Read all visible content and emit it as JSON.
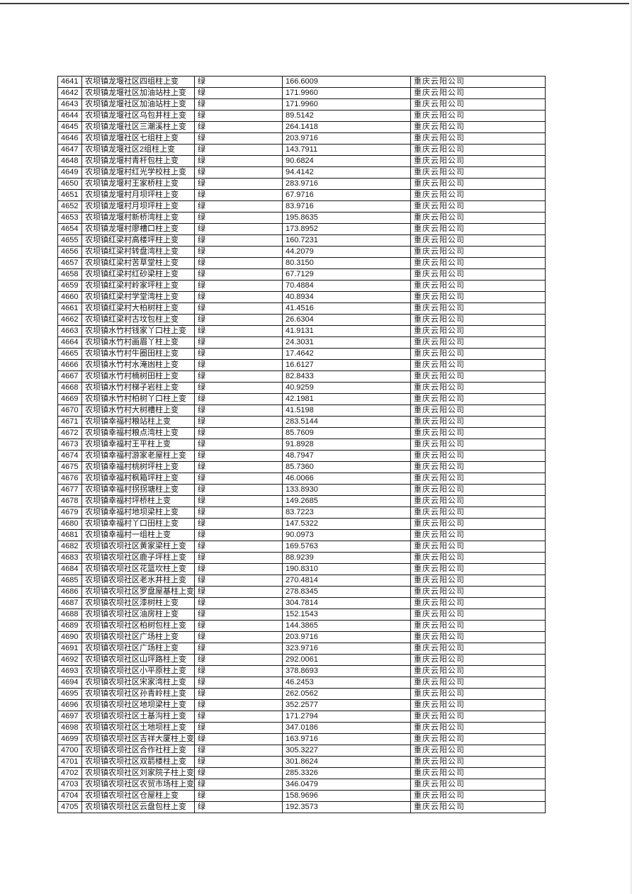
{
  "page": {
    "background": "#ffffff",
    "top_rule_color": "#3c3c3c",
    "grid_border_color": "#161616"
  },
  "table": {
    "color_label_all_rows": "绿",
    "company_all_rows": "重庆云阳公司",
    "rows": [
      {
        "id": "4641",
        "name": "农坝镇龙堰社区四组柱上变",
        "color": "绿",
        "value": "166.6009",
        "company": "重庆云阳公司"
      },
      {
        "id": "4642",
        "name": "农坝镇龙堰社区加油站柱上变",
        "color": "绿",
        "value": "171.9960",
        "company": "重庆云阳公司"
      },
      {
        "id": "4643",
        "name": "农坝镇龙堰社区加油站柱上变",
        "color": "绿",
        "value": "171.9960",
        "company": "重庆云阳公司"
      },
      {
        "id": "4644",
        "name": "农坝镇龙堰社区乌包井柱上变",
        "color": "绿",
        "value": "89.5142",
        "company": "重庆云阳公司"
      },
      {
        "id": "4645",
        "name": "农坝镇龙堰社区三潮溪柱上变",
        "color": "绿",
        "value": "264.1418",
        "company": "重庆云阳公司"
      },
      {
        "id": "4646",
        "name": "农坝镇龙堰社区七组柱上变",
        "color": "绿",
        "value": "203.9716",
        "company": "重庆云阳公司"
      },
      {
        "id": "4647",
        "name": "农坝镇龙堰社区2组柱上变",
        "color": "绿",
        "value": "143.7911",
        "company": "重庆云阳公司"
      },
      {
        "id": "4648",
        "name": "农坝镇龙堰村青杆包柱上变",
        "color": "绿",
        "value": "90.6824",
        "company": "重庆云阳公司"
      },
      {
        "id": "4649",
        "name": "农坝镇龙堰村红光学校柱上变",
        "color": "绿",
        "value": "94.4142",
        "company": "重庆云阳公司"
      },
      {
        "id": "4650",
        "name": "农坝镇龙堰村王家桥柱上变",
        "color": "绿",
        "value": "283.9716",
        "company": "重庆云阳公司"
      },
      {
        "id": "4651",
        "name": "农坝镇龙堰村月坝坪柱上变",
        "color": "绿",
        "value": "67.9716",
        "company": "重庆云阳公司"
      },
      {
        "id": "4652",
        "name": "农坝镇龙堰村月坝坪柱上变",
        "color": "绿",
        "value": "83.9716",
        "company": "重庆云阳公司"
      },
      {
        "id": "4653",
        "name": "农坝镇龙堰村新桥湾柱上变",
        "color": "绿",
        "value": "195.8635",
        "company": "重庆云阳公司"
      },
      {
        "id": "4654",
        "name": "农坝镇龙堰村廖槽口柱上变",
        "color": "绿",
        "value": "173.8952",
        "company": "重庆云阳公司"
      },
      {
        "id": "4655",
        "name": "农坝镇红梁村高楼坪柱上变",
        "color": "绿",
        "value": "160.7231",
        "company": "重庆云阳公司"
      },
      {
        "id": "4656",
        "name": "农坝镇红梁村转盘湾柱上变",
        "color": "绿",
        "value": "44.2079",
        "company": "重庆云阳公司"
      },
      {
        "id": "4657",
        "name": "农坝镇红梁村苦草堂柱上变",
        "color": "绿",
        "value": "80.3150",
        "company": "重庆云阳公司"
      },
      {
        "id": "4658",
        "name": "农坝镇红梁村红砂梁柱上变",
        "color": "绿",
        "value": "67.7129",
        "company": "重庆云阳公司"
      },
      {
        "id": "4659",
        "name": "农坝镇红梁村岭家坪柱上变",
        "color": "绿",
        "value": "70.4884",
        "company": "重庆云阳公司"
      },
      {
        "id": "4660",
        "name": "农坝镇红梁村学堂湾柱上变",
        "color": "绿",
        "value": "40.8934",
        "company": "重庆云阳公司"
      },
      {
        "id": "4661",
        "name": "农坝镇红梁村大柏树柱上变",
        "color": "绿",
        "value": "41.4516",
        "company": "重庆云阳公司"
      },
      {
        "id": "4662",
        "name": "农坝镇红梁村古坟包柱上变",
        "color": "绿",
        "value": "26.6304",
        "company": "重庆云阳公司"
      },
      {
        "id": "4663",
        "name": "农坝镇水竹村钱家丫口柱上变",
        "color": "绿",
        "value": "41.9131",
        "company": "重庆云阳公司"
      },
      {
        "id": "4664",
        "name": "农坝镇水竹村画眉丫柱上变",
        "color": "绿",
        "value": "24.3031",
        "company": "重庆云阳公司"
      },
      {
        "id": "4665",
        "name": "农坝镇水竹村牛圈田柱上变",
        "color": "绿",
        "value": "17.4642",
        "company": "重庆云阳公司"
      },
      {
        "id": "4666",
        "name": "农坝镇水竹村水淹凼柱上变",
        "color": "绿",
        "value": "16.6127",
        "company": "重庆云阳公司"
      },
      {
        "id": "4667",
        "name": "农坝镇水竹村楠树田柱上变",
        "color": "绿",
        "value": "82.8433",
        "company": "重庆云阳公司"
      },
      {
        "id": "4668",
        "name": "农坝镇水竹村梯子岩柱上变",
        "color": "绿",
        "value": "40.9259",
        "company": "重庆云阳公司"
      },
      {
        "id": "4669",
        "name": "农坝镇水竹村柏树丫口柱上变",
        "color": "绿",
        "value": "42.1981",
        "company": "重庆云阳公司"
      },
      {
        "id": "4670",
        "name": "农坝镇水竹村大树槽柱上变",
        "color": "绿",
        "value": "41.5198",
        "company": "重庆云阳公司"
      },
      {
        "id": "4671",
        "name": "农坝镇幸福村粮站柱上变",
        "color": "绿",
        "value": "283.5144",
        "company": "重庆云阳公司"
      },
      {
        "id": "4672",
        "name": "农坝镇幸福村粮点湾柱上变",
        "color": "绿",
        "value": "85.7609",
        "company": "重庆云阳公司"
      },
      {
        "id": "4673",
        "name": "农坝镇幸福村王平柱上变",
        "color": "绿",
        "value": "91.8928",
        "company": "重庆云阳公司"
      },
      {
        "id": "4674",
        "name": "农坝镇幸福村游家老屋柱上变",
        "color": "绿",
        "value": "48.7947",
        "company": "重庆云阳公司"
      },
      {
        "id": "4675",
        "name": "农坝镇幸福村桃树坪柱上变",
        "color": "绿",
        "value": "85.7360",
        "company": "重庆云阳公司"
      },
      {
        "id": "4676",
        "name": "农坝镇幸福村枫箱坪柱上变",
        "color": "绿",
        "value": "46.0066",
        "company": "重庆云阳公司"
      },
      {
        "id": "4677",
        "name": "农坝镇幸福村拐拐塘柱上变",
        "color": "绿",
        "value": "133.8930",
        "company": "重庆云阳公司"
      },
      {
        "id": "4678",
        "name": "农坝镇幸福村坪桥柱上变",
        "color": "绿",
        "value": "149.2685",
        "company": "重庆云阳公司"
      },
      {
        "id": "4679",
        "name": "农坝镇幸福村地坝梁柱上变",
        "color": "绿",
        "value": "83.7223",
        "company": "重庆云阳公司"
      },
      {
        "id": "4680",
        "name": "农坝镇幸福村丫口田柱上变",
        "color": "绿",
        "value": "147.5322",
        "company": "重庆云阳公司"
      },
      {
        "id": "4681",
        "name": "农坝镇幸福村一组柱上变",
        "color": "绿",
        "value": "90.0973",
        "company": "重庆云阳公司"
      },
      {
        "id": "4682",
        "name": "农坝镇农坝社区黄家梁柱上变",
        "color": "绿",
        "value": "169.5763",
        "company": "重庆云阳公司"
      },
      {
        "id": "4683",
        "name": "农坝镇农坝社区鹿子坪柱上变",
        "color": "绿",
        "value": "88.9239",
        "company": "重庆云阳公司"
      },
      {
        "id": "4684",
        "name": "农坝镇农坝社区花篮坎柱上变",
        "color": "绿",
        "value": "190.8310",
        "company": "重庆云阳公司"
      },
      {
        "id": "4685",
        "name": "农坝镇农坝社区老水井柱上变",
        "color": "绿",
        "value": "270.4814",
        "company": "重庆云阳公司"
      },
      {
        "id": "4686",
        "name": "农坝镇农坝社区罗盘屋基柱上变",
        "color": "绿",
        "value": "278.8345",
        "company": "重庆云阳公司"
      },
      {
        "id": "4687",
        "name": "农坝镇农坝社区漆树柱上变",
        "color": "绿",
        "value": "304.7814",
        "company": "重庆云阳公司"
      },
      {
        "id": "4688",
        "name": "农坝镇农坝社区油房柱上变",
        "color": "绿",
        "value": "152.1543",
        "company": "重庆云阳公司"
      },
      {
        "id": "4689",
        "name": "农坝镇农坝社区柏树包柱上变",
        "color": "绿",
        "value": "144.3865",
        "company": "重庆云阳公司"
      },
      {
        "id": "4690",
        "name": "农坝镇农坝社区广场柱上变",
        "color": "绿",
        "value": "203.9716",
        "company": "重庆云阳公司"
      },
      {
        "id": "4691",
        "name": "农坝镇农坝社区广场柱上变",
        "color": "绿",
        "value": "323.9716",
        "company": "重庆云阳公司"
      },
      {
        "id": "4692",
        "name": "农坝镇农坝社区山坪路柱上变",
        "color": "绿",
        "value": "292.0061",
        "company": "重庆云阳公司"
      },
      {
        "id": "4693",
        "name": "农坝镇农坝社区小平原柱上变",
        "color": "绿",
        "value": "378.8693",
        "company": "重庆云阳公司"
      },
      {
        "id": "4694",
        "name": "农坝镇农坝社区宋家湾柱上变",
        "color": "绿",
        "value": "46.2453",
        "company": "重庆云阳公司"
      },
      {
        "id": "4695",
        "name": "农坝镇农坝社区孙青岭柱上变",
        "color": "绿",
        "value": "262.0562",
        "company": "重庆云阳公司"
      },
      {
        "id": "4696",
        "name": "农坝镇农坝社区地坝梁柱上变",
        "color": "绿",
        "value": "352.2577",
        "company": "重庆云阳公司"
      },
      {
        "id": "4697",
        "name": "农坝镇农坝社区土基沟柱上变",
        "color": "绿",
        "value": "171.2794",
        "company": "重庆云阳公司"
      },
      {
        "id": "4698",
        "name": "农坝镇农坝社区土地坝柱上变",
        "color": "绿",
        "value": "347.0186",
        "company": "重庆云阳公司"
      },
      {
        "id": "4699",
        "name": "农坝镇农坝社区吉祥大厦柱上变",
        "color": "绿",
        "value": "163.9716",
        "company": "重庆云阳公司"
      },
      {
        "id": "4700",
        "name": "农坝镇农坝社区合作社柱上变",
        "color": "绿",
        "value": "305.3227",
        "company": "重庆云阳公司"
      },
      {
        "id": "4701",
        "name": "农坝镇农坝社区双箭楼柱上变",
        "color": "绿",
        "value": "301.8624",
        "company": "重庆云阳公司"
      },
      {
        "id": "4702",
        "name": "农坝镇农坝社区刘家院子柱上变",
        "color": "绿",
        "value": "285.3326",
        "company": "重庆云阳公司"
      },
      {
        "id": "4703",
        "name": "农坝镇农坝社区农贸市场柱上变",
        "color": "绿",
        "value": "346.0479",
        "company": "重庆云阳公司"
      },
      {
        "id": "4704",
        "name": "农坝镇农坝社区仓屋柱上变",
        "color": "绿",
        "value": "158.9696",
        "company": "重庆云阳公司"
      },
      {
        "id": "4705",
        "name": "农坝镇农坝社区云盘包柱上变",
        "color": "绿",
        "value": "192.3573",
        "company": "重庆云阳公司"
      }
    ]
  }
}
